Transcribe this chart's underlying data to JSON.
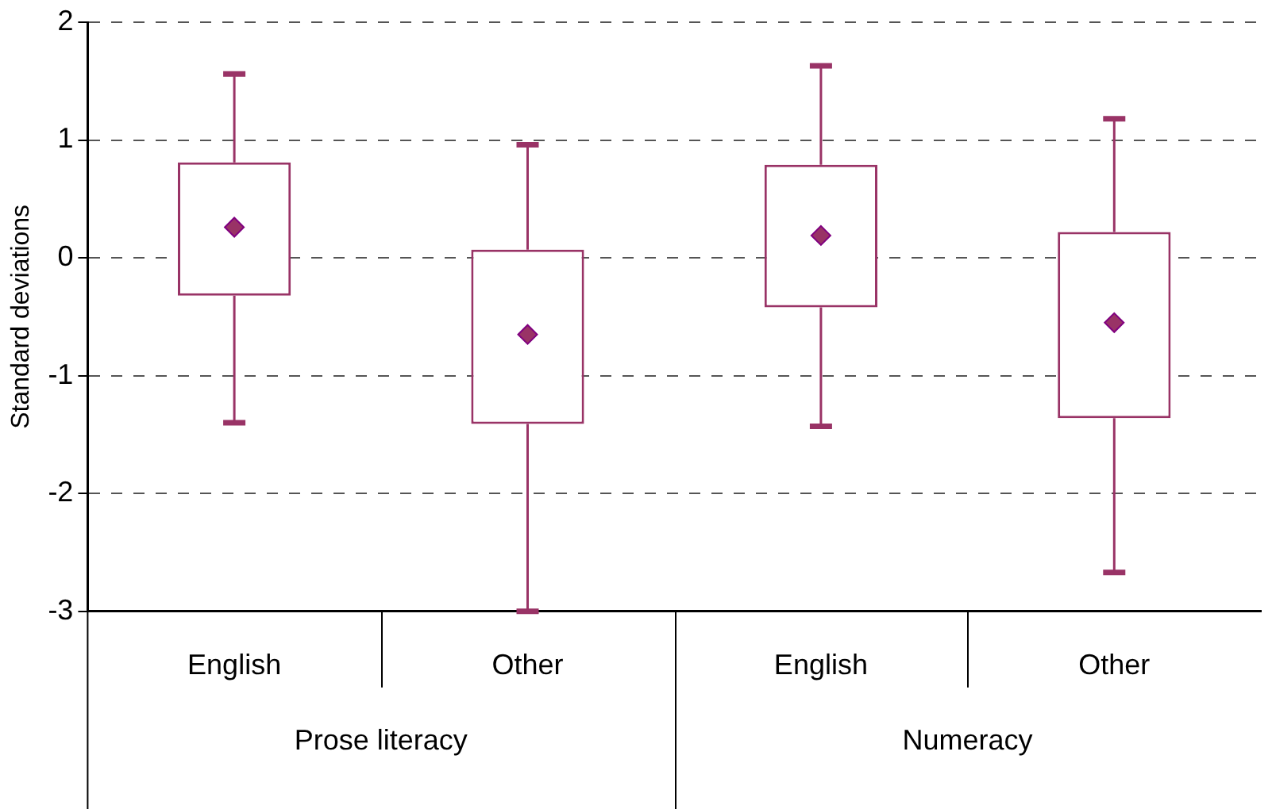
{
  "chart_data": {
    "type": "box",
    "ylabel": "Standard deviations",
    "categories": [
      "English",
      "Other",
      "English",
      "Other"
    ],
    "annotations": [
      "Prose literacy",
      "Numeracy"
    ],
    "color": "#993366",
    "boxes": [
      {
        "low": -1.4,
        "q1": -0.32,
        "median": 0.26,
        "q3": 0.81,
        "high": 1.56
      },
      {
        "low": -3.0,
        "q1": -1.41,
        "median": -0.65,
        "q3": 0.07,
        "high": 0.96
      },
      {
        "low": -1.43,
        "q1": -0.42,
        "median": 0.19,
        "q3": 0.79,
        "high": 1.63
      },
      {
        "low": -2.67,
        "q1": -1.36,
        "median": -0.55,
        "q3": 0.22,
        "high": 1.18
      }
    ],
    "ylim": [
      -3,
      2
    ],
    "yticks": [
      -3,
      -2,
      -1,
      0,
      1,
      2
    ],
    "grid": "y",
    "marker": "diamond",
    "legend": false
  }
}
